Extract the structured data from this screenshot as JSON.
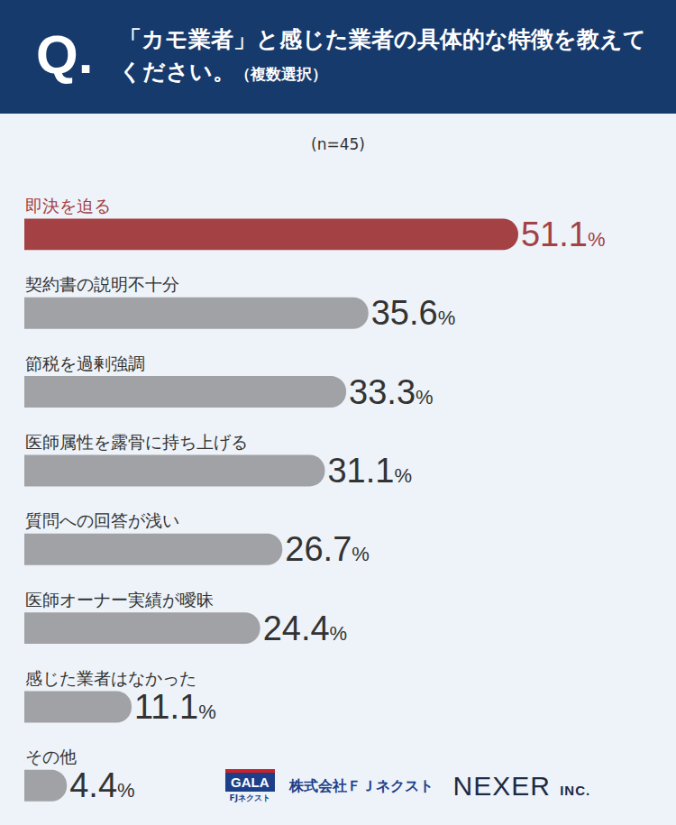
{
  "chart_data": {
    "type": "bar",
    "title_mark": "Q.",
    "title": "「カモ業者」と感じた業者の具体的な特徴を教えてください。",
    "title_note": "（複数選択）",
    "subtitle": "(n=45)",
    "orientation": "horizontal",
    "categories": [
      "即決を迫る",
      "契約書の説明不十分",
      "節税を過剰強調",
      "医師属性を露骨に持ち上げる",
      "質問への回答が浅い",
      "医師オーナー実績が曖昧",
      "感じた業者はなかった",
      "その他"
    ],
    "values": [
      51.1,
      35.6,
      33.3,
      31.1,
      26.7,
      24.4,
      11.1,
      4.4
    ],
    "value_labels": [
      "51.1%",
      "35.6%",
      "33.3%",
      "31.1%",
      "26.7%",
      "24.4%",
      "11.1%",
      "4.4%"
    ],
    "colors": [
      "#a34144",
      "#a1a2a6",
      "#a1a2a6",
      "#a1a2a6",
      "#a1a2a6",
      "#a1a2a6",
      "#a1a2a6",
      "#a1a2a6"
    ],
    "xlim": [
      0,
      65
    ],
    "data_labels": true,
    "tick_labels": false,
    "grid": false
  },
  "credits": {
    "logo": "GALA",
    "logo_sub": "FJネクスト",
    "company": "株式会社ＦＪネクスト",
    "brand": "NEXER",
    "brand_suffix": "INC."
  }
}
